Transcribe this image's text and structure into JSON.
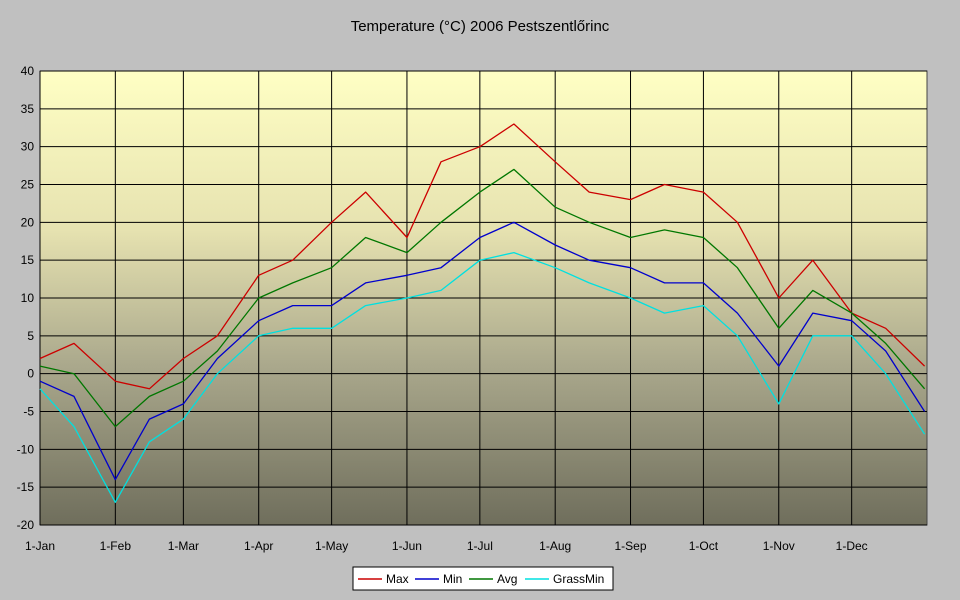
{
  "chart_data": {
    "type": "line",
    "title": "Temperature (°C) 2006 Pestszentlőrinc",
    "xlabel": "",
    "ylabel": "",
    "ylim": [
      -20,
      40
    ],
    "y_ticks": [
      40,
      35,
      30,
      25,
      20,
      15,
      10,
      5,
      0,
      -5,
      -10,
      -15,
      -20
    ],
    "x_tick_labels": [
      "1-Jan",
      "1-Feb",
      "1-Mar",
      "1-Apr",
      "1-May",
      "1-Jun",
      "1-Jul",
      "1-Aug",
      "1-Sep",
      "1-Oct",
      "1-Nov",
      "1-Dec"
    ],
    "x_tick_days": [
      1,
      32,
      60,
      91,
      121,
      152,
      182,
      213,
      244,
      274,
      305,
      335
    ],
    "grid": true,
    "legend_position": "bottom",
    "x_sample_days": [
      1,
      15,
      32,
      46,
      60,
      74,
      91,
      105,
      121,
      135,
      152,
      166,
      182,
      196,
      213,
      227,
      244,
      258,
      274,
      288,
      305,
      319,
      335,
      349,
      365
    ],
    "series": [
      {
        "name": "Max",
        "color": "#cc0000",
        "values": [
          2,
          4,
          -1,
          -2,
          2,
          5,
          13,
          15,
          20,
          24,
          18,
          28,
          30,
          33,
          28,
          24,
          23,
          25,
          24,
          20,
          10,
          15,
          8,
          6,
          1
        ]
      },
      {
        "name": "Min",
        "color": "#0000cc",
        "values": [
          -1,
          -3,
          -14,
          -6,
          -4,
          2,
          7,
          9,
          9,
          12,
          13,
          14,
          18,
          20,
          17,
          15,
          14,
          12,
          12,
          8,
          1,
          8,
          7,
          3,
          -5
        ]
      },
      {
        "name": "Avg",
        "color": "#007700",
        "values": [
          1,
          0,
          -7,
          -3,
          -1,
          3,
          10,
          12,
          14,
          18,
          16,
          20,
          24,
          27,
          22,
          20,
          18,
          19,
          18,
          14,
          6,
          11,
          8,
          4,
          -2
        ]
      },
      {
        "name": "GrassMin",
        "color": "#00e0e0",
        "values": [
          -2,
          -7,
          -17,
          -9,
          -6,
          0,
          5,
          6,
          6,
          9,
          10,
          11,
          15,
          16,
          14,
          12,
          10,
          8,
          9,
          5,
          -4,
          5,
          5,
          0,
          -8
        ]
      }
    ]
  }
}
